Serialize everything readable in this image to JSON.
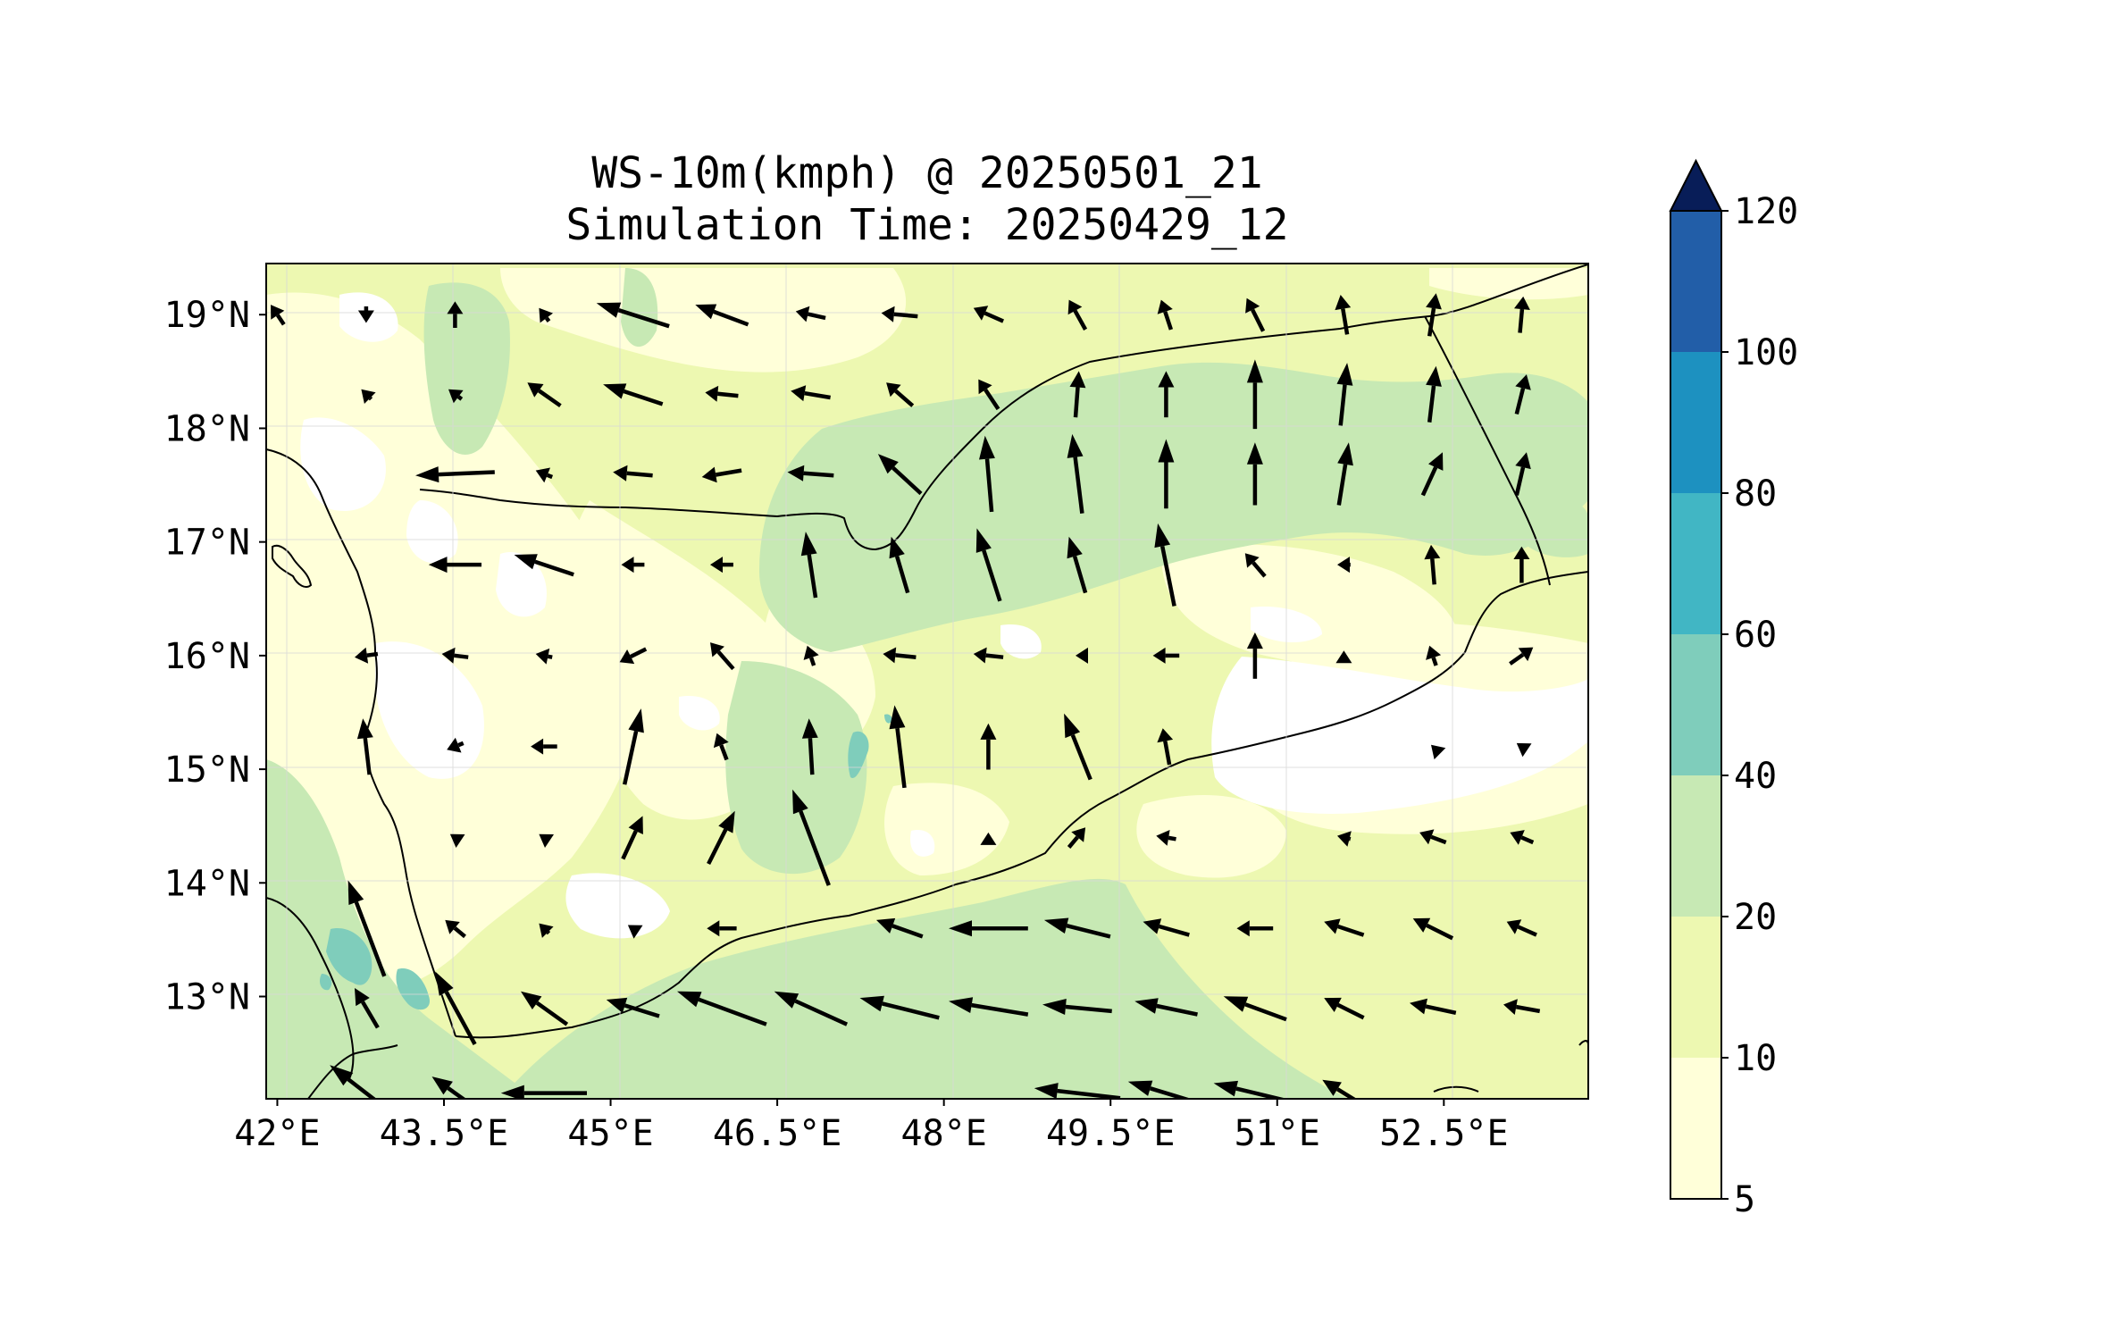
{
  "chart_data": {
    "type": "heatmap",
    "title_line1": "WS-10m(kmph) @ 20250501_21",
    "title_line2": "Simulation Time: 20250429_12",
    "x_ticks": [
      "42°E",
      "43.5°E",
      "45°E",
      "46.5°E",
      "48°E",
      "49.5°E",
      "51°E",
      "52.5°E"
    ],
    "x_tick_values": [
      42,
      43.5,
      45,
      46.5,
      48,
      49.5,
      51,
      52.5
    ],
    "y_ticks": [
      "13°N",
      "14°N",
      "15°N",
      "16°N",
      "17°N",
      "18°N",
      "19°N"
    ],
    "y_tick_values": [
      13,
      14,
      15,
      16,
      17,
      18,
      19
    ],
    "xlim": [
      41.9,
      53.8
    ],
    "ylim": [
      12.1,
      19.45
    ],
    "grid": true,
    "colorbar": {
      "position": "right",
      "extend": "max",
      "tick_labels": [
        "5",
        "10",
        "20",
        "40",
        "60",
        "80",
        "100",
        "120"
      ],
      "levels": [
        5,
        10,
        20,
        40,
        60,
        80,
        100,
        120
      ],
      "colors": [
        "#ffffd9",
        "#edf8b1",
        "#c7e9b4",
        "#7fcdbb",
        "#41b6c4",
        "#1d91c0",
        "#225ea8",
        "#0c2c84"
      ],
      "extend_color": "#081d58"
    },
    "field_colors": {
      "below_5": "#ffffff",
      "5_10": "#ffffd9",
      "10_20": "#edf8b1",
      "20_40": "#c7e9b4",
      "40_60": "#7fcdbb"
    },
    "vectors": [
      {
        "lon": 42.0,
        "lat": 19.0,
        "u": -4,
        "v": 6
      },
      {
        "lon": 42.8,
        "lat": 19.0,
        "u": 0,
        "v": -5
      },
      {
        "lon": 43.6,
        "lat": 19.0,
        "u": 0,
        "v": 8
      },
      {
        "lon": 44.4,
        "lat": 19.0,
        "u": -3,
        "v": 4
      },
      {
        "lon": 45.2,
        "lat": 19.0,
        "u": -22,
        "v": 7
      },
      {
        "lon": 46.0,
        "lat": 19.0,
        "u": -16,
        "v": 6
      },
      {
        "lon": 46.8,
        "lat": 19.0,
        "u": -9,
        "v": 2
      },
      {
        "lon": 47.6,
        "lat": 19.0,
        "u": -11,
        "v": 1
      },
      {
        "lon": 48.4,
        "lat": 19.0,
        "u": -9,
        "v": 4
      },
      {
        "lon": 49.2,
        "lat": 19.0,
        "u": -5,
        "v": 9
      },
      {
        "lon": 50.0,
        "lat": 19.0,
        "u": -3,
        "v": 9
      },
      {
        "lon": 50.8,
        "lat": 19.0,
        "u": -5,
        "v": 10
      },
      {
        "lon": 51.6,
        "lat": 19.0,
        "u": -2,
        "v": 12
      },
      {
        "lon": 52.4,
        "lat": 19.0,
        "u": 2,
        "v": 13
      },
      {
        "lon": 53.2,
        "lat": 19.0,
        "u": 1,
        "v": 11
      },
      {
        "lon": 42.8,
        "lat": 18.3,
        "u": -3,
        "v": 3
      },
      {
        "lon": 43.6,
        "lat": 18.3,
        "u": -4,
        "v": 3
      },
      {
        "lon": 44.4,
        "lat": 18.3,
        "u": -10,
        "v": 7
      },
      {
        "lon": 45.2,
        "lat": 18.3,
        "u": -18,
        "v": 6
      },
      {
        "lon": 46.0,
        "lat": 18.3,
        "u": -10,
        "v": 1
      },
      {
        "lon": 46.8,
        "lat": 18.3,
        "u": -12,
        "v": 2
      },
      {
        "lon": 47.6,
        "lat": 18.3,
        "u": -8,
        "v": 7
      },
      {
        "lon": 48.4,
        "lat": 18.3,
        "u": -6,
        "v": 9
      },
      {
        "lon": 49.2,
        "lat": 18.3,
        "u": 1,
        "v": 14
      },
      {
        "lon": 50.0,
        "lat": 18.3,
        "u": 0,
        "v": 14
      },
      {
        "lon": 50.8,
        "lat": 18.3,
        "u": 0,
        "v": 21
      },
      {
        "lon": 51.6,
        "lat": 18.3,
        "u": 2,
        "v": 19
      },
      {
        "lon": 52.4,
        "lat": 18.3,
        "u": 2,
        "v": 17
      },
      {
        "lon": 53.2,
        "lat": 18.3,
        "u": 3,
        "v": 12
      },
      {
        "lon": 43.6,
        "lat": 17.6,
        "u": -24,
        "v": -1
      },
      {
        "lon": 44.4,
        "lat": 17.6,
        "u": -5,
        "v": 2
      },
      {
        "lon": 45.2,
        "lat": 17.6,
        "u": -12,
        "v": 1
      },
      {
        "lon": 46.0,
        "lat": 17.6,
        "u": -12,
        "v": -2
      },
      {
        "lon": 46.8,
        "lat": 17.6,
        "u": -14,
        "v": 1
      },
      {
        "lon": 47.6,
        "lat": 17.6,
        "u": -13,
        "v": 12
      },
      {
        "lon": 48.4,
        "lat": 17.6,
        "u": -2,
        "v": 23
      },
      {
        "lon": 49.2,
        "lat": 17.6,
        "u": -3,
        "v": 24
      },
      {
        "lon": 50.0,
        "lat": 17.6,
        "u": 0,
        "v": 21
      },
      {
        "lon": 50.8,
        "lat": 17.6,
        "u": 0,
        "v": 19
      },
      {
        "lon": 51.6,
        "lat": 17.6,
        "u": 3,
        "v": 19
      },
      {
        "lon": 52.4,
        "lat": 17.6,
        "u": 6,
        "v": 13
      },
      {
        "lon": 53.2,
        "lat": 17.6,
        "u": 3,
        "v": 13
      },
      {
        "lon": 43.6,
        "lat": 16.8,
        "u": -16,
        "v": 0
      },
      {
        "lon": 44.4,
        "lat": 16.8,
        "u": -18,
        "v": 6
      },
      {
        "lon": 45.2,
        "lat": 16.8,
        "u": -7,
        "v": 0
      },
      {
        "lon": 46.0,
        "lat": 16.8,
        "u": -7,
        "v": 0
      },
      {
        "lon": 46.8,
        "lat": 16.8,
        "u": -3,
        "v": 20
      },
      {
        "lon": 47.6,
        "lat": 16.8,
        "u": -5,
        "v": 17
      },
      {
        "lon": 48.4,
        "lat": 16.8,
        "u": -7,
        "v": 22
      },
      {
        "lon": 49.2,
        "lat": 16.8,
        "u": -5,
        "v": 17
      },
      {
        "lon": 50.0,
        "lat": 16.8,
        "u": -5,
        "v": 25
      },
      {
        "lon": 50.8,
        "lat": 16.8,
        "u": -6,
        "v": 7
      },
      {
        "lon": 51.6,
        "lat": 16.8,
        "u": -4,
        "v": 0
      },
      {
        "lon": 52.4,
        "lat": 16.8,
        "u": -1,
        "v": 12
      },
      {
        "lon": 53.2,
        "lat": 16.8,
        "u": 0,
        "v": 11
      },
      {
        "lon": 42.8,
        "lat": 16.0,
        "u": -7,
        "v": -1
      },
      {
        "lon": 43.6,
        "lat": 16.0,
        "u": -8,
        "v": 1
      },
      {
        "lon": 44.4,
        "lat": 16.0,
        "u": -5,
        "v": 1
      },
      {
        "lon": 45.2,
        "lat": 16.0,
        "u": -8,
        "v": -4
      },
      {
        "lon": 46.0,
        "lat": 16.0,
        "u": -7,
        "v": 8
      },
      {
        "lon": 46.8,
        "lat": 16.0,
        "u": -2,
        "v": 6
      },
      {
        "lon": 47.6,
        "lat": 16.0,
        "u": -10,
        "v": 1
      },
      {
        "lon": 48.4,
        "lat": 16.0,
        "u": -9,
        "v": 1
      },
      {
        "lon": 49.2,
        "lat": 16.0,
        "u": -1,
        "v": 0
      },
      {
        "lon": 50.0,
        "lat": 16.0,
        "u": -8,
        "v": 0
      },
      {
        "lon": 50.8,
        "lat": 16.0,
        "u": 0,
        "v": 14
      },
      {
        "lon": 51.6,
        "lat": 16.0,
        "u": 0,
        "v": 3
      },
      {
        "lon": 52.4,
        "lat": 16.0,
        "u": -2,
        "v": 6
      },
      {
        "lon": 53.2,
        "lat": 16.0,
        "u": 7,
        "v": 5
      },
      {
        "lon": 42.8,
        "lat": 15.2,
        "u": -2,
        "v": 17
      },
      {
        "lon": 43.6,
        "lat": 15.2,
        "u": -5,
        "v": -2
      },
      {
        "lon": 44.4,
        "lat": 15.2,
        "u": -8,
        "v": 0
      },
      {
        "lon": 45.2,
        "lat": 15.2,
        "u": 5,
        "v": 23
      },
      {
        "lon": 46.0,
        "lat": 15.2,
        "u": -3,
        "v": 8
      },
      {
        "lon": 46.8,
        "lat": 15.2,
        "u": -1,
        "v": 17
      },
      {
        "lon": 47.6,
        "lat": 15.2,
        "u": -3,
        "v": 25
      },
      {
        "lon": 48.4,
        "lat": 15.2,
        "u": 0,
        "v": 14
      },
      {
        "lon": 49.2,
        "lat": 15.2,
        "u": -8,
        "v": 20
      },
      {
        "lon": 50.0,
        "lat": 15.2,
        "u": -2,
        "v": 11
      },
      {
        "lon": 52.4,
        "lat": 15.2,
        "u": -1,
        "v": 1
      },
      {
        "lon": 53.2,
        "lat": 15.2,
        "u": -3,
        "v": 2
      },
      {
        "lon": 43.6,
        "lat": 14.4,
        "u": -3,
        "v": 2
      },
      {
        "lon": 44.4,
        "lat": 14.4,
        "u": -3,
        "v": 2
      },
      {
        "lon": 45.2,
        "lat": 14.4,
        "u": 6,
        "v": 13
      },
      {
        "lon": 46.0,
        "lat": 14.4,
        "u": 8,
        "v": 16
      },
      {
        "lon": 46.8,
        "lat": 14.4,
        "u": -11,
        "v": 29
      },
      {
        "lon": 48.4,
        "lat": 14.4,
        "u": 0,
        "v": 3
      },
      {
        "lon": 49.2,
        "lat": 14.4,
        "u": 5,
        "v": 6
      },
      {
        "lon": 50.0,
        "lat": 14.4,
        "u": -6,
        "v": 1
      },
      {
        "lon": 51.6,
        "lat": 14.4,
        "u": -4,
        "v": 1
      },
      {
        "lon": 52.4,
        "lat": 14.4,
        "u": -8,
        "v": 3
      },
      {
        "lon": 53.2,
        "lat": 14.4,
        "u": -7,
        "v": 3
      },
      {
        "lon": 42.8,
        "lat": 13.6,
        "u": -11,
        "v": 29
      },
      {
        "lon": 43.6,
        "lat": 13.6,
        "u": -6,
        "v": 5
      },
      {
        "lon": 44.4,
        "lat": 13.6,
        "u": -3,
        "v": 3
      },
      {
        "lon": 45.2,
        "lat": 13.6,
        "u": -3,
        "v": 2
      },
      {
        "lon": 46.0,
        "lat": 13.6,
        "u": -9,
        "v": 0
      },
      {
        "lon": 47.6,
        "lat": 13.6,
        "u": -14,
        "v": 5
      },
      {
        "lon": 48.4,
        "lat": 13.6,
        "u": -24,
        "v": 0
      },
      {
        "lon": 49.2,
        "lat": 13.6,
        "u": -20,
        "v": 5
      },
      {
        "lon": 50.0,
        "lat": 13.6,
        "u": -14,
        "v": 4
      },
      {
        "lon": 50.8,
        "lat": 13.6,
        "u": -11,
        "v": 0
      },
      {
        "lon": 51.6,
        "lat": 13.6,
        "u": -12,
        "v": 4
      },
      {
        "lon": 52.4,
        "lat": 13.6,
        "u": -12,
        "v": 6
      },
      {
        "lon": 53.2,
        "lat": 13.6,
        "u": -9,
        "v": 4
      },
      {
        "lon": 42.8,
        "lat": 12.9,
        "u": -7,
        "v": 12
      },
      {
        "lon": 43.6,
        "lat": 12.9,
        "u": -12,
        "v": 22
      },
      {
        "lon": 44.4,
        "lat": 12.9,
        "u": -14,
        "v": 10
      },
      {
        "lon": 45.2,
        "lat": 12.9,
        "u": -16,
        "v": 5
      },
      {
        "lon": 46.0,
        "lat": 12.9,
        "u": -27,
        "v": 10
      },
      {
        "lon": 46.8,
        "lat": 12.9,
        "u": -22,
        "v": 10
      },
      {
        "lon": 47.6,
        "lat": 12.9,
        "u": -24,
        "v": 6
      },
      {
        "lon": 48.4,
        "lat": 12.9,
        "u": -24,
        "v": 4
      },
      {
        "lon": 49.2,
        "lat": 12.9,
        "u": -21,
        "v": 2
      },
      {
        "lon": 50.0,
        "lat": 12.9,
        "u": -19,
        "v": 4
      },
      {
        "lon": 50.8,
        "lat": 12.9,
        "u": -19,
        "v": 7
      },
      {
        "lon": 51.6,
        "lat": 12.9,
        "u": -12,
        "v": 6
      },
      {
        "lon": 52.4,
        "lat": 12.9,
        "u": -14,
        "v": 3
      },
      {
        "lon": 53.2,
        "lat": 12.9,
        "u": -11,
        "v": 2
      },
      {
        "lon": 42.8,
        "lat": 12.15,
        "u": -22,
        "v": 17
      },
      {
        "lon": 43.6,
        "lat": 12.15,
        "u": -14,
        "v": 10
      },
      {
        "lon": 44.4,
        "lat": 12.15,
        "u": -26,
        "v": 0
      },
      {
        "lon": 49.2,
        "lat": 12.15,
        "u": -26,
        "v": 3
      },
      {
        "lon": 50.0,
        "lat": 12.15,
        "u": -23,
        "v": 7
      },
      {
        "lon": 50.8,
        "lat": 12.15,
        "u": -25,
        "v": 6
      },
      {
        "lon": 51.6,
        "lat": 12.15,
        "u": -13,
        "v": 8
      }
    ]
  }
}
